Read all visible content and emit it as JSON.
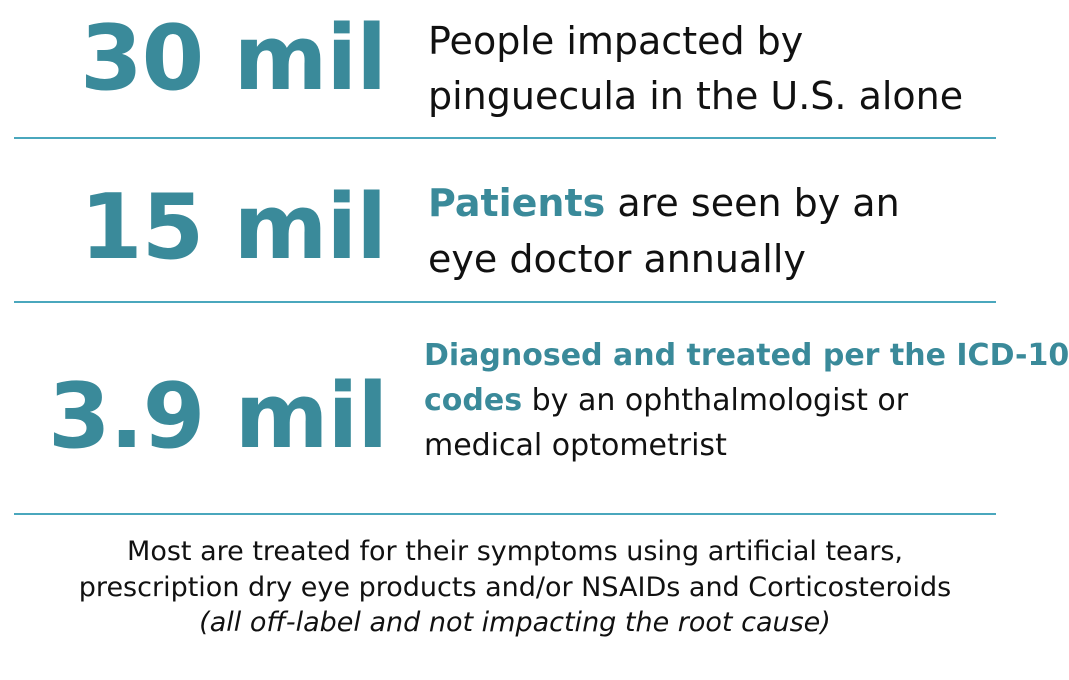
{
  "stat1": {
    "value": "30 mil",
    "line1": "People impacted by",
    "line2": "pinguecula in the U.S. alone"
  },
  "stat2": {
    "value": "15 mil",
    "highlight": "Patients",
    "line1_rest": " are seen by an",
    "line2": "eye doctor annually"
  },
  "stat3": {
    "value": "3.9 mil",
    "highlight_line1": "Diagnosed and treated per the ICD-10",
    "highlight_line2": "codes",
    "line2_rest": " by an ophthalmologist or",
    "line3": "medical optometrist"
  },
  "footer": {
    "line1": "Most are treated for their symptoms using artificial tears,",
    "line2": "prescription dry eye products and/or NSAIDs and Corticosteroids",
    "line3": "(all off-label and not impacting the root cause)"
  },
  "colors": {
    "accent": "#3a8a9a",
    "rule": "#4aa7bd",
    "text": "#111111"
  }
}
